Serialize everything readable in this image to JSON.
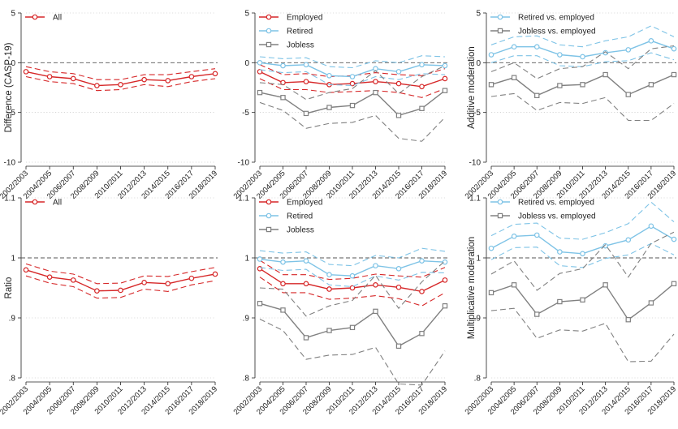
{
  "x_categories": [
    "2002/2003",
    "2004/2005",
    "2006/2007",
    "2008/2009",
    "2010/2011",
    "2012/2013",
    "2014/2015",
    "2016/2017",
    "2018/2019"
  ],
  "colors": {
    "employed": "#d62728",
    "retired": "#7ec3e6",
    "jobless": "#808080",
    "reference": "#555555",
    "grid": "#bbbbbb"
  },
  "chart_data": [
    {
      "type": "line",
      "ylabel": "Difference (CASP-19)",
      "ylim": [
        -10,
        5
      ],
      "yticks": [
        5,
        0,
        -5,
        -10
      ],
      "yticklabels": [
        "5",
        "0",
        "-5",
        "-10"
      ],
      "reference": 0,
      "legend": [
        "All"
      ],
      "series": [
        {
          "name": "All",
          "color": "#d62728",
          "marker": "circle",
          "values": [
            -0.9,
            -1.4,
            -1.6,
            -2.3,
            -2.2,
            -1.7,
            -1.8,
            -1.4,
            -1.1
          ],
          "lower": [
            -1.4,
            -1.9,
            -2.1,
            -2.8,
            -2.7,
            -2.2,
            -2.4,
            -1.9,
            -1.6
          ],
          "upper": [
            -0.4,
            -0.9,
            -1.1,
            -1.7,
            -1.7,
            -1.2,
            -1.2,
            -0.9,
            -0.6
          ]
        }
      ]
    },
    {
      "type": "line",
      "ylabel": "",
      "ylim": [
        -10,
        5
      ],
      "yticks": [
        5,
        0,
        -5,
        -10
      ],
      "yticklabels": [
        "5",
        "0",
        "-5",
        "-10"
      ],
      "reference": 0,
      "legend": [
        "Employed",
        "Retired",
        "Jobless"
      ],
      "series": [
        {
          "name": "Employed",
          "color": "#d62728",
          "marker": "circle",
          "values": [
            -0.9,
            -2.0,
            -1.9,
            -2.2,
            -2.1,
            -1.9,
            -2.1,
            -2.4,
            -1.6
          ],
          "lower": [
            -1.6,
            -2.7,
            -2.7,
            -3.0,
            -2.9,
            -2.8,
            -3.0,
            -3.5,
            -2.6
          ],
          "upper": [
            -0.2,
            -1.2,
            -1.1,
            -1.4,
            -1.3,
            -1.0,
            -1.2,
            -1.3,
            -0.6
          ]
        },
        {
          "name": "Retired",
          "color": "#7ec3e6",
          "marker": "circle",
          "values": [
            0.0,
            -0.3,
            -0.2,
            -1.3,
            -1.4,
            -0.6,
            -0.9,
            -0.2,
            -0.3
          ],
          "lower": [
            -0.7,
            -1.0,
            -0.9,
            -2.2,
            -2.3,
            -1.4,
            -1.7,
            -1.1,
            -1.2
          ],
          "upper": [
            0.6,
            0.4,
            0.5,
            -0.4,
            -0.5,
            0.2,
            0.0,
            0.7,
            0.6
          ]
        },
        {
          "name": "Jobless",
          "color": "#808080",
          "marker": "square",
          "values": [
            -3.0,
            -3.5,
            -5.1,
            -4.5,
            -4.3,
            -3.0,
            -5.3,
            -4.6,
            -2.8
          ],
          "lower": [
            -4.0,
            -4.8,
            -6.6,
            -6.1,
            -6.0,
            -5.3,
            -7.6,
            -7.9,
            -5.5
          ],
          "upper": [
            -2.0,
            -2.2,
            -3.7,
            -3.0,
            -2.6,
            -0.8,
            -3.1,
            -1.4,
            -0.3
          ]
        }
      ]
    },
    {
      "type": "line",
      "ylabel": "Additive moderation",
      "ylim": [
        -10,
        5
      ],
      "yticks": [
        5,
        0,
        -5,
        -10
      ],
      "yticklabels": [
        "5",
        "0",
        "-5",
        "-10"
      ],
      "reference": 0,
      "legend": [
        "Retired vs. employed",
        "Jobless vs. employed"
      ],
      "series": [
        {
          "name": "Retired vs. employed",
          "color": "#7ec3e6",
          "marker": "circle",
          "values": [
            0.8,
            1.6,
            1.6,
            0.8,
            0.6,
            1.0,
            1.3,
            2.2,
            1.4
          ],
          "lower": [
            0.0,
            0.7,
            0.7,
            -0.3,
            -0.4,
            0.1,
            0.2,
            1.0,
            0.3
          ],
          "upper": [
            1.8,
            2.6,
            2.7,
            1.8,
            1.6,
            2.2,
            2.6,
            3.7,
            2.6
          ]
        },
        {
          "name": "Jobless vs. employed",
          "color": "#808080",
          "marker": "square",
          "values": [
            -2.2,
            -1.5,
            -3.3,
            -2.3,
            -2.2,
            -1.2,
            -3.2,
            -2.2,
            -1.2
          ],
          "lower": [
            -3.4,
            -3.1,
            -4.8,
            -4.0,
            -4.1,
            -3.5,
            -5.8,
            -5.8,
            -4.1
          ],
          "upper": [
            -0.9,
            0.0,
            -1.6,
            -0.6,
            -0.4,
            1.1,
            -0.6,
            1.4,
            1.7
          ]
        }
      ]
    },
    {
      "type": "line",
      "ylabel": "Ratio",
      "ylim": [
        0.8,
        1.1
      ],
      "yticks": [
        1.1,
        1.0,
        0.9,
        0.8
      ],
      "yticklabels": [
        "1.1",
        "1",
        ".9",
        ".8"
      ],
      "reference": 1.0,
      "legend": [
        "All"
      ],
      "series": [
        {
          "name": "All",
          "color": "#d62728",
          "marker": "circle",
          "values": [
            0.98,
            0.968,
            0.963,
            0.945,
            0.946,
            0.959,
            0.957,
            0.966,
            0.973
          ],
          "lower": [
            0.97,
            0.958,
            0.952,
            0.933,
            0.934,
            0.948,
            0.944,
            0.955,
            0.962
          ],
          "upper": [
            0.99,
            0.978,
            0.973,
            0.957,
            0.958,
            0.97,
            0.969,
            0.977,
            0.984
          ]
        }
      ]
    },
    {
      "type": "line",
      "ylabel": "",
      "ylim": [
        0.8,
        1.1
      ],
      "yticks": [
        1.1,
        1.0,
        0.9,
        0.8
      ],
      "yticklabels": [
        "1.1",
        "1",
        ".9",
        ".8"
      ],
      "reference": 1.0,
      "legend": [
        "Employed",
        "Retired",
        "Jobless"
      ],
      "series": [
        {
          "name": "Employed",
          "color": "#d62728",
          "marker": "circle",
          "values": [
            0.982,
            0.957,
            0.957,
            0.948,
            0.95,
            0.955,
            0.951,
            0.944,
            0.963
          ],
          "lower": [
            0.968,
            0.942,
            0.942,
            0.931,
            0.933,
            0.937,
            0.932,
            0.92,
            0.942
          ],
          "upper": [
            0.996,
            0.972,
            0.972,
            0.964,
            0.966,
            0.973,
            0.97,
            0.968,
            0.984
          ]
        },
        {
          "name": "Retired",
          "color": "#7ec3e6",
          "marker": "circle",
          "values": [
            0.998,
            0.993,
            0.995,
            0.972,
            0.97,
            0.987,
            0.982,
            0.995,
            0.993
          ],
          "lower": [
            0.984,
            0.979,
            0.981,
            0.955,
            0.952,
            0.97,
            0.963,
            0.976,
            0.975
          ],
          "upper": [
            1.012,
            1.008,
            1.01,
            0.989,
            0.987,
            1.004,
            1.0,
            1.016,
            1.011
          ]
        },
        {
          "name": "Jobless",
          "color": "#808080",
          "marker": "square",
          "values": [
            0.924,
            0.913,
            0.867,
            0.879,
            0.884,
            0.911,
            0.853,
            0.874,
            0.92
          ],
          "lower": [
            0.898,
            0.879,
            0.831,
            0.838,
            0.839,
            0.851,
            0.79,
            0.788,
            0.845
          ],
          "upper": [
            0.95,
            0.948,
            0.903,
            0.92,
            0.929,
            0.971,
            0.916,
            0.96,
            0.995
          ]
        }
      ]
    },
    {
      "type": "line",
      "ylabel": "Multiplicative moderation",
      "ylim": [
        0.8,
        1.1
      ],
      "yticks": [
        1.1,
        1.0,
        0.9,
        0.8
      ],
      "yticklabels": [
        "1.1",
        "1",
        ".9",
        ".8"
      ],
      "reference": 1.0,
      "legend": [
        "Retired vs. employed",
        "Jobless vs. employed"
      ],
      "series": [
        {
          "name": "Retired vs. employed",
          "color": "#7ec3e6",
          "marker": "circle",
          "values": [
            1.016,
            1.036,
            1.038,
            1.01,
            1.007,
            1.02,
            1.03,
            1.053,
            1.031
          ],
          "lower": [
            0.997,
            1.017,
            1.018,
            0.987,
            0.984,
            0.999,
            1.005,
            1.024,
            1.005
          ],
          "upper": [
            1.037,
            1.056,
            1.058,
            1.033,
            1.031,
            1.042,
            1.057,
            1.093,
            1.06
          ]
        },
        {
          "name": "Jobless vs. employed",
          "color": "#808080",
          "marker": "square",
          "values": [
            0.942,
            0.955,
            0.906,
            0.927,
            0.93,
            0.955,
            0.897,
            0.925,
            0.957
          ],
          "lower": [
            0.912,
            0.916,
            0.866,
            0.88,
            0.878,
            0.891,
            0.827,
            0.828,
            0.873
          ],
          "upper": [
            0.973,
            0.995,
            0.946,
            0.974,
            0.982,
            1.022,
            0.968,
            1.024,
            1.043
          ]
        }
      ]
    }
  ]
}
